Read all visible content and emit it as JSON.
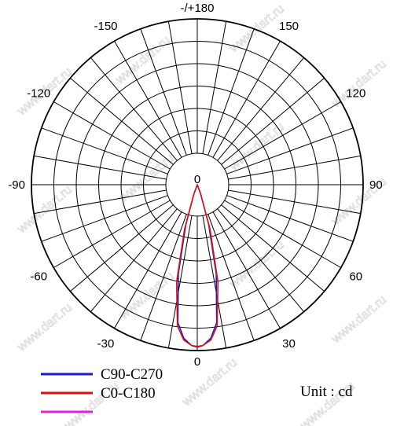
{
  "chart_data": {
    "type": "polar",
    "angle_labels": [
      {
        "deg": 180,
        "text": "-/+180"
      },
      {
        "deg": 150,
        "text": "150"
      },
      {
        "deg": -150,
        "text": "-150"
      },
      {
        "deg": 120,
        "text": "120"
      },
      {
        "deg": -120,
        "text": "-120"
      },
      {
        "deg": 90,
        "text": "90"
      },
      {
        "deg": -90,
        "text": "-90"
      },
      {
        "deg": 60,
        "text": "60"
      },
      {
        "deg": -60,
        "text": "-60"
      },
      {
        "deg": 30,
        "text": "30"
      },
      {
        "deg": -30,
        "text": "-30"
      },
      {
        "deg": 0,
        "text": "0"
      }
    ],
    "center_label": "0",
    "grid": true,
    "radial_gridlines": 6,
    "spoke_step_deg": 10,
    "series": [
      {
        "name": "C90-C270",
        "color": "#1a1ad0",
        "theta": [
          -20,
          -16,
          -12,
          -8,
          -5,
          -2,
          0,
          2,
          5,
          8,
          12,
          16,
          20
        ],
        "r": [
          0.06,
          0.25,
          0.55,
          0.84,
          0.93,
          0.97,
          0.98,
          0.97,
          0.93,
          0.84,
          0.55,
          0.25,
          0.06
        ]
      },
      {
        "name": "C0-C180",
        "color": "#e01010",
        "theta": [
          -20,
          -16,
          -12,
          -8,
          -5,
          -2,
          0,
          2,
          5,
          8,
          12,
          16,
          20
        ],
        "r": [
          0.06,
          0.28,
          0.6,
          0.86,
          0.94,
          0.97,
          0.975,
          0.97,
          0.94,
          0.86,
          0.6,
          0.28,
          0.06
        ]
      },
      {
        "name": "",
        "color": "#e020e0",
        "theta": [],
        "r": []
      }
    ],
    "legend": {
      "placement": "bottom-left",
      "entries": [
        {
          "label": "C90-C270",
          "color": "#1a1ad0"
        },
        {
          "label": "C0-C180",
          "color": "#e01010"
        },
        {
          "label": "",
          "color": "#e020e0"
        }
      ]
    },
    "unit_text": "Unit : cd"
  },
  "watermark_text": "www.dart.ru"
}
